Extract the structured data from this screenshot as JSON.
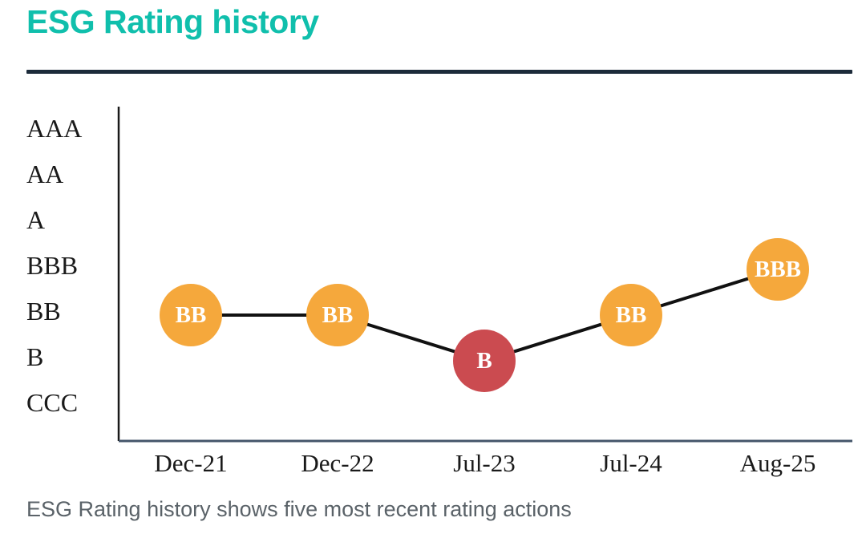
{
  "header": {
    "title": "ESG Rating history"
  },
  "footer": {
    "caption": "ESG Rating history shows five most recent rating actions"
  },
  "colors": {
    "title_teal": "#10BFAC",
    "divider_navy": "#1C2B3A",
    "y_axis_black": "#1A1A1A",
    "x_axis_slate": "#44556A",
    "axis_label_black": "#1A1A1A",
    "caption_gray": "#5A6268",
    "line_black": "#111111",
    "marker_orange": "#F5A83C",
    "marker_red": "#CB4B50",
    "marker_text_white": "#FFFFFF"
  },
  "chart_data": {
    "type": "line",
    "title": "ESG Rating history",
    "caption": "ESG Rating history shows five most recent rating actions",
    "y_categories": [
      "AAA",
      "AA",
      "A",
      "BBB",
      "BB",
      "B",
      "CCC"
    ],
    "categories": [
      "Dec-21",
      "Dec-22",
      "Jul-23",
      "Jul-24",
      "Aug-25"
    ],
    "series": [
      {
        "name": "ESG Rating",
        "values": [
          "BB",
          "BB",
          "B",
          "BB",
          "BBB"
        ]
      }
    ],
    "point_colors": [
      "#F5A83C",
      "#F5A83C",
      "#CB4B50",
      "#F5A83C",
      "#F5A83C"
    ],
    "point_labels": [
      "BB",
      "BB",
      "B",
      "BB",
      "BBB"
    ],
    "grid": false,
    "legend_position": "none",
    "y_axis_order": "best-at-top",
    "marker_shape": "circle"
  }
}
